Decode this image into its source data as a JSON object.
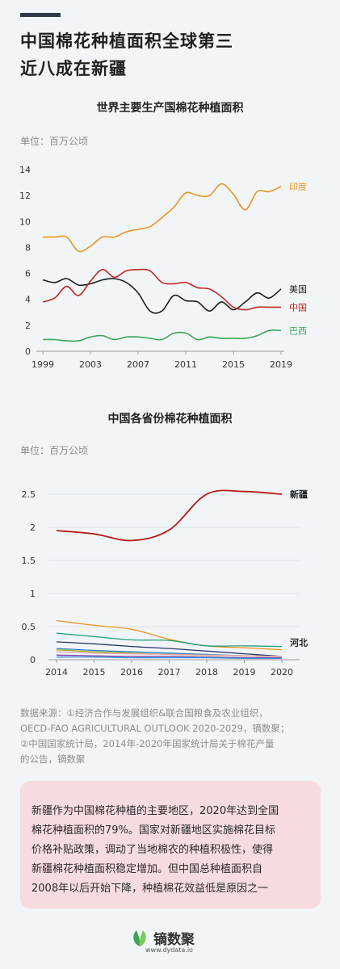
{
  "headline": {
    "line1": "中国棉花种植面积全球第三",
    "line2": "近八成在新疆"
  },
  "chart_data": [
    {
      "type": "line",
      "title": "世界主要生产国棉花种植面积",
      "unit": "单位：百万公顷",
      "xlim": [
        1999,
        2019
      ],
      "ylim": [
        0,
        14
      ],
      "x_ticks": [
        1999,
        2003,
        2007,
        2011,
        2015,
        2019
      ],
      "y_ticks": [
        0,
        2,
        4,
        6,
        8,
        10,
        12,
        14
      ],
      "grid": false,
      "x": [
        1999,
        2000,
        2001,
        2002,
        2003,
        2004,
        2005,
        2006,
        2007,
        2008,
        2009,
        2010,
        2011,
        2012,
        2013,
        2014,
        2015,
        2016,
        2017,
        2018,
        2019
      ],
      "series": [
        {
          "name": "印度",
          "color": "#e8961e",
          "values": [
            8.8,
            8.8,
            8.8,
            7.7,
            8.1,
            8.8,
            8.8,
            9.2,
            9.4,
            9.6,
            10.3,
            11.1,
            12.2,
            12.0,
            12.0,
            12.9,
            12.1,
            10.9,
            12.3,
            12.3,
            12.7
          ]
        },
        {
          "name": "美国",
          "color": "#1f1f1f",
          "values": [
            5.5,
            5.3,
            5.6,
            5.1,
            5.2,
            5.5,
            5.6,
            5.3,
            4.5,
            3.1,
            3.1,
            4.3,
            3.9,
            3.8,
            3.1,
            3.8,
            3.2,
            3.8,
            4.5,
            4.1,
            4.8
          ]
        },
        {
          "name": "中国",
          "color": "#c0281f",
          "values": [
            3.8,
            4.1,
            5.0,
            4.3,
            5.4,
            6.3,
            5.7,
            6.2,
            6.3,
            6.2,
            5.3,
            5.2,
            5.3,
            4.9,
            4.8,
            4.2,
            3.4,
            3.2,
            3.4,
            3.4,
            3.4
          ]
        },
        {
          "name": "巴西",
          "color": "#3aa653",
          "values": [
            0.9,
            0.9,
            0.8,
            0.8,
            1.1,
            1.2,
            0.9,
            1.1,
            1.1,
            1.0,
            0.9,
            1.4,
            1.4,
            0.9,
            1.1,
            1.0,
            1.0,
            1.0,
            1.2,
            1.6,
            1.6
          ]
        }
      ]
    },
    {
      "type": "line",
      "title": "中国各省份棉花种植面积",
      "unit": "单位：百万公顷",
      "xlim": [
        2014,
        2020
      ],
      "ylim": [
        0,
        2.75
      ],
      "x_ticks": [
        2014,
        2015,
        2016,
        2017,
        2018,
        2019,
        2020
      ],
      "y_ticks": [
        0,
        0.5,
        1,
        1.5,
        2,
        2.5
      ],
      "y_tick_labels": [
        "0",
        "0.5",
        "1",
        "1.5",
        "2",
        "2.5"
      ],
      "grid": true,
      "x": [
        2014,
        2015,
        2016,
        2017,
        2018,
        2019,
        2020
      ],
      "series": [
        {
          "name": "新疆",
          "color": "#b61c16",
          "values": [
            1.95,
            1.9,
            1.8,
            1.96,
            2.5,
            2.54,
            2.5
          ]
        },
        {
          "color": "#e8961e",
          "values": [
            0.59,
            0.52,
            0.46,
            0.31,
            0.21,
            0.18,
            0.15
          ]
        },
        {
          "name": "河北",
          "color": "#21a07c",
          "values": [
            0.4,
            0.35,
            0.3,
            0.29,
            0.21,
            0.21,
            0.2
          ]
        },
        {
          "color": "#27356e",
          "values": [
            0.27,
            0.24,
            0.2,
            0.17,
            0.13,
            0.09,
            0.05
          ]
        },
        {
          "color": "#2a7fc0",
          "values": [
            0.17,
            0.14,
            0.12,
            0.1,
            0.08,
            0.06,
            0.05
          ]
        },
        {
          "color": "#9fae2a",
          "values": [
            0.15,
            0.12,
            0.1,
            0.08,
            0.07,
            0.06,
            0.05
          ]
        },
        {
          "color": "#e6a3a8",
          "values": [
            0.12,
            0.1,
            0.09,
            0.08,
            0.07,
            0.06,
            0.05
          ]
        },
        {
          "color": "#7b3fa3",
          "values": [
            0.07,
            0.06,
            0.05,
            0.05,
            0.04,
            0.03,
            0.03
          ]
        },
        {
          "color": "#3c8fd6",
          "values": [
            0.04,
            0.04,
            0.03,
            0.03,
            0.03,
            0.02,
            0.02
          ]
        }
      ]
    }
  ],
  "source": {
    "line1": "数据来源：①经济合作与发展组织&联合国粮食及农业组织，",
    "line2": "OECD-FAO AGRICULTURAL OUTLOOK 2020-2029，镝数聚；",
    "line3": "②中国国家统计局，2014年-2020年国家统计局关于棉花产量",
    "line4": "的公告，镝数聚"
  },
  "note": {
    "line1": "新疆作为中国棉花种植的主要地区，2020年达到全国",
    "line2": "棉花种植面积的79%。国家对新疆地区实施棉花目标",
    "line3": "价格补贴政策，调动了当地棉农的种植积极性，使得",
    "line4": "新疆棉花种植面积稳定增加。但中国总种植面积自",
    "line5": "2008年以后开始下降，种植棉花效益低是原因之一"
  },
  "logo": {
    "name": "镝数聚",
    "url": "www.dydata.io",
    "colors": [
      "#3aa653",
      "#7ccb5a"
    ]
  }
}
